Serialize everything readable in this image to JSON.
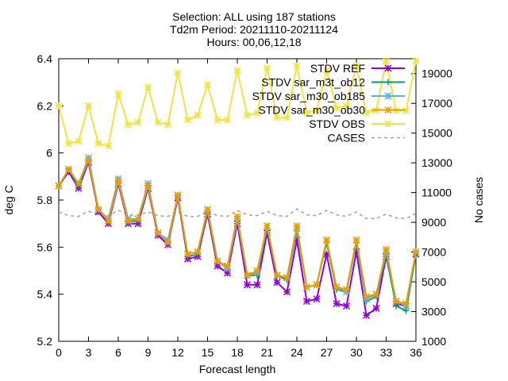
{
  "title_lines": [
    "Selection: ALL using   187 stations",
    "Td2m  Period: 20211110-20211124",
    "Hours: 00,06,12,18"
  ],
  "chart_data": {
    "type": "line",
    "title": "Selection: ALL using   187 stations\nTd2m  Period: 20211110-20211124\nHours: 00,06,12,18",
    "xlabel": "Forecast length",
    "ylabel": "deg C",
    "y2label": "No cases",
    "xlim": [
      0,
      36
    ],
    "ylim": [
      5.2,
      6.4
    ],
    "y2lim": [
      1000,
      20000
    ],
    "x_ticks": [
      0,
      3,
      6,
      9,
      12,
      15,
      18,
      21,
      24,
      27,
      30,
      33,
      36
    ],
    "y_ticks": [
      5.2,
      5.4,
      5.6,
      5.8,
      6.0,
      6.2,
      6.4
    ],
    "y_tick_labels": [
      "5.2",
      "5.4",
      "5.6",
      "5.8",
      "6",
      "6.2",
      "6.4"
    ],
    "y2_ticks": [
      1000,
      3000,
      5000,
      7000,
      9000,
      11000,
      13000,
      15000,
      17000,
      19000
    ],
    "grid": false,
    "legend_position": "top-right",
    "x": [
      0,
      1,
      2,
      3,
      4,
      5,
      6,
      7,
      8,
      9,
      10,
      11,
      12,
      13,
      14,
      15,
      16,
      17,
      18,
      19,
      20,
      21,
      22,
      23,
      24,
      25,
      26,
      27,
      28,
      29,
      30,
      31,
      32,
      33,
      34,
      35,
      36
    ],
    "series": [
      {
        "name": "STDV REF",
        "axis": "y",
        "color": "#9400d3",
        "marker": "star",
        "values": [
          5.86,
          5.92,
          5.85,
          5.96,
          5.75,
          5.7,
          5.87,
          5.7,
          5.7,
          5.85,
          5.65,
          5.61,
          5.81,
          5.55,
          5.56,
          5.74,
          5.52,
          5.49,
          5.7,
          5.44,
          5.44,
          5.66,
          5.45,
          5.41,
          5.63,
          5.37,
          5.38,
          5.57,
          5.36,
          5.35,
          5.58,
          5.31,
          5.34,
          5.56,
          5.36,
          5.35,
          5.57
        ]
      },
      {
        "name": "STDV sar_m3t_ob12",
        "axis": "y",
        "color": "#009e73",
        "marker": "plus",
        "values": [
          5.86,
          5.93,
          5.86,
          5.97,
          5.76,
          5.71,
          5.88,
          5.71,
          5.71,
          5.86,
          5.66,
          5.62,
          5.82,
          5.56,
          5.57,
          5.75,
          5.54,
          5.51,
          5.72,
          5.48,
          5.48,
          5.68,
          5.48,
          5.46,
          5.67,
          5.43,
          5.44,
          5.62,
          5.42,
          5.41,
          5.62,
          5.37,
          5.39,
          5.57,
          5.35,
          5.33,
          5.57
        ]
      },
      {
        "name": "STDV sar_m30_ob185",
        "axis": "y",
        "color": "#56b4e9",
        "marker": "star",
        "values": [
          5.86,
          5.93,
          5.87,
          5.98,
          5.76,
          5.72,
          5.89,
          5.72,
          5.72,
          5.87,
          5.66,
          5.63,
          5.82,
          5.57,
          5.58,
          5.76,
          5.54,
          5.51,
          5.72,
          5.48,
          5.49,
          5.69,
          5.48,
          5.47,
          5.68,
          5.43,
          5.44,
          5.63,
          5.43,
          5.41,
          5.63,
          5.38,
          5.4,
          5.58,
          5.37,
          5.35,
          5.58
        ]
      },
      {
        "name": "STDV sar_m30_ob30",
        "axis": "y",
        "color": "#e69f00",
        "marker": "star",
        "values": [
          5.86,
          5.93,
          5.87,
          5.97,
          5.76,
          5.71,
          5.88,
          5.71,
          5.72,
          5.86,
          5.66,
          5.62,
          5.82,
          5.57,
          5.58,
          5.76,
          5.54,
          5.52,
          5.73,
          5.48,
          5.5,
          5.69,
          5.48,
          5.47,
          5.69,
          5.43,
          5.44,
          5.63,
          5.43,
          5.42,
          5.63,
          5.39,
          5.4,
          5.59,
          5.37,
          5.36,
          5.58
        ]
      },
      {
        "name": "STDV OBS",
        "axis": "y",
        "color": "#f0e442",
        "marker": "star",
        "values": [
          6.2,
          6.04,
          6.05,
          6.2,
          6.04,
          6.03,
          6.25,
          6.12,
          6.13,
          6.28,
          6.13,
          6.12,
          6.34,
          6.14,
          6.16,
          6.29,
          6.14,
          6.14,
          6.35,
          6.16,
          6.17,
          6.36,
          6.15,
          6.15,
          6.37,
          6.17,
          6.18,
          6.35,
          6.19,
          6.2,
          6.37,
          6.17,
          6.18,
          6.39,
          6.18,
          6.18,
          6.39
        ]
      },
      {
        "name": "CASES",
        "axis": "y2",
        "color": "#a0a0a0",
        "dashed": true,
        "values": [
          9700,
          9450,
          9400,
          9750,
          9500,
          9450,
          9800,
          9500,
          9500,
          9700,
          9450,
          9400,
          9700,
          9400,
          9400,
          9750,
          9450,
          9400,
          9800,
          9500,
          9450,
          9750,
          9450,
          9400,
          9900,
          9500,
          9450,
          9800,
          9500,
          9400,
          9700,
          9250,
          9250,
          9550,
          9300,
          9250,
          9600
        ]
      }
    ]
  }
}
